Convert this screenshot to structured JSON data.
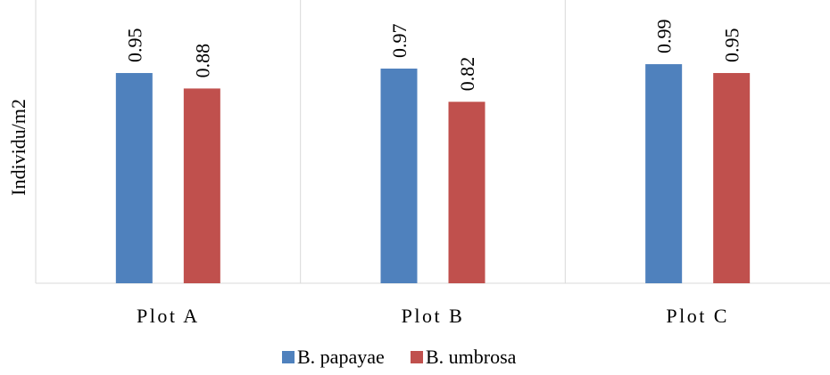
{
  "chart_data": {
    "type": "bar",
    "categories": [
      "Plot A",
      "Plot B",
      "Plot C"
    ],
    "series": [
      {
        "name": "B. papayae",
        "values": [
          0.95,
          0.97,
          0.99
        ],
        "color": "#4F81BD"
      },
      {
        "name": "B. umbrosa",
        "values": [
          0.88,
          0.82,
          0.95
        ],
        "color": "#C0504D"
      }
    ],
    "ylabel": "Individu/m2",
    "xlabel": "",
    "ylim": [
      0,
      1.28
    ],
    "grid": false,
    "legend_position": "bottom",
    "axis_color": "#D9D9D9",
    "label_color": "#000000"
  }
}
